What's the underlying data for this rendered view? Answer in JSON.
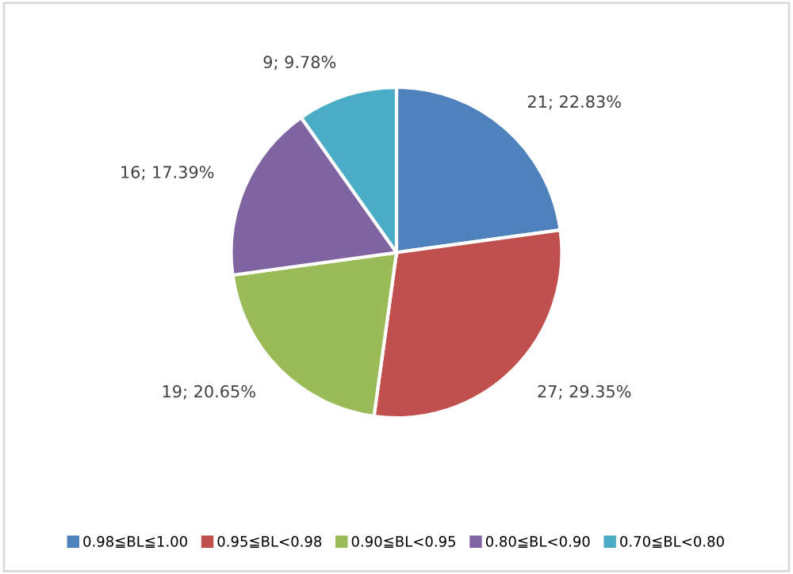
{
  "chart_data": {
    "type": "pie",
    "categories": [
      "0.98≦BL≦1.00",
      "0.95≦BL<0.98",
      "0.90≦BL<0.95",
      "0.80≦BL<0.90",
      "0.70≦BL<0.80"
    ],
    "values": [
      21,
      27,
      19,
      16,
      9
    ],
    "value_labels": [
      "21; 22.83%",
      "27; 29.35%",
      "19; 20.65%",
      "16; 17.39%",
      "9; 9.78%"
    ],
    "colors": [
      "#4f81bd",
      "#c0504d",
      "#9bbb59",
      "#8064a2",
      "#4bacc6"
    ],
    "legend": "bottom"
  }
}
